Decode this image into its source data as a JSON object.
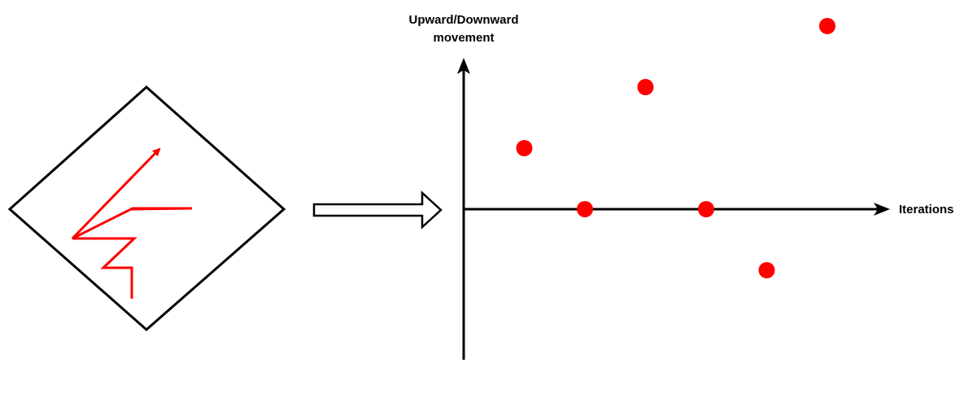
{
  "diagram": {
    "y_axis_label_line1": "Upward/Downward",
    "y_axis_label_line2": "movement",
    "x_axis_label": "Iterations",
    "colors": {
      "stroke": "#000000",
      "path": "#ff0000",
      "points": "#ff0000"
    }
  },
  "chart_data": {
    "type": "scatter",
    "xlabel": "Iterations",
    "ylabel": "Upward/Downward movement",
    "x": [
      1,
      2,
      3,
      4,
      5,
      6
    ],
    "y": [
      1,
      0,
      2,
      0,
      -1,
      3
    ]
  }
}
